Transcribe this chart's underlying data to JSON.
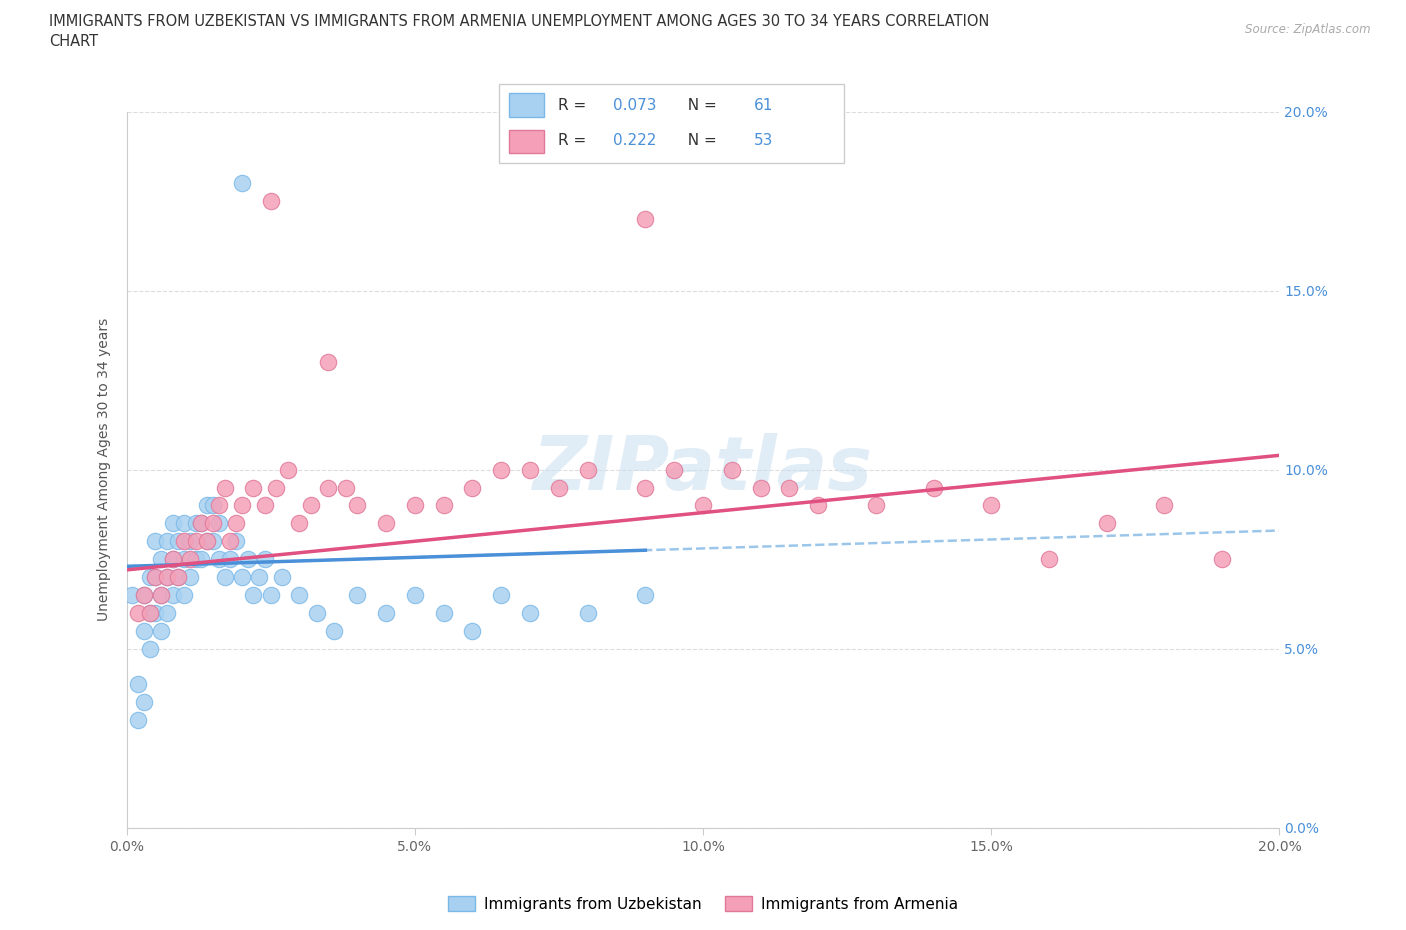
{
  "title_line1": "IMMIGRANTS FROM UZBEKISTAN VS IMMIGRANTS FROM ARMENIA UNEMPLOYMENT AMONG AGES 30 TO 34 YEARS CORRELATION",
  "title_line2": "CHART",
  "source_text": "Source: ZipAtlas.com",
  "ylabel": "Unemployment Among Ages 30 to 34 years",
  "xlim": [
    0.0,
    0.2
  ],
  "ylim": [
    0.0,
    0.2
  ],
  "yticks": [
    0.0,
    0.05,
    0.1,
    0.15,
    0.2
  ],
  "xticks": [
    0.0,
    0.05,
    0.1,
    0.15,
    0.2
  ],
  "R_uzbek": 0.073,
  "N_uzbek": 61,
  "R_armenia": 0.222,
  "N_armenia": 53,
  "color_uzbek": "#a8d0f0",
  "color_uzbek_edge": "#7ab8e8",
  "color_armenia": "#f5a0b8",
  "color_armenia_edge": "#e07898",
  "trendline_uzbek_solid": "#4a90d9",
  "trendline_uzbek_dash": "#90c0e8",
  "trendline_armenia_solid": "#e05080",
  "watermark_color": "#c8ddf0",
  "uzbek_x": [
    0.001,
    0.002,
    0.002,
    0.003,
    0.003,
    0.003,
    0.004,
    0.004,
    0.004,
    0.005,
    0.005,
    0.005,
    0.006,
    0.006,
    0.006,
    0.007,
    0.007,
    0.007,
    0.008,
    0.008,
    0.008,
    0.009,
    0.009,
    0.01,
    0.01,
    0.01,
    0.011,
    0.011,
    0.012,
    0.012,
    0.013,
    0.013,
    0.014,
    0.014,
    0.015,
    0.015,
    0.016,
    0.016,
    0.017,
    0.018,
    0.019,
    0.02,
    0.021,
    0.022,
    0.023,
    0.024,
    0.025,
    0.027,
    0.03,
    0.033,
    0.036,
    0.04,
    0.045,
    0.05,
    0.055,
    0.06,
    0.065,
    0.07,
    0.08,
    0.09,
    0.02
  ],
  "uzbek_y": [
    0.065,
    0.03,
    0.04,
    0.035,
    0.055,
    0.065,
    0.05,
    0.06,
    0.07,
    0.06,
    0.07,
    0.08,
    0.055,
    0.065,
    0.075,
    0.06,
    0.07,
    0.08,
    0.065,
    0.075,
    0.085,
    0.07,
    0.08,
    0.065,
    0.075,
    0.085,
    0.07,
    0.08,
    0.075,
    0.085,
    0.075,
    0.085,
    0.08,
    0.09,
    0.08,
    0.09,
    0.075,
    0.085,
    0.07,
    0.075,
    0.08,
    0.07,
    0.075,
    0.065,
    0.07,
    0.075,
    0.065,
    0.07,
    0.065,
    0.06,
    0.055,
    0.065,
    0.06,
    0.065,
    0.06,
    0.055,
    0.065,
    0.06,
    0.06,
    0.065,
    0.18
  ],
  "armenia_x": [
    0.002,
    0.003,
    0.004,
    0.005,
    0.006,
    0.007,
    0.008,
    0.009,
    0.01,
    0.011,
    0.012,
    0.013,
    0.014,
    0.015,
    0.016,
    0.017,
    0.018,
    0.019,
    0.02,
    0.022,
    0.024,
    0.026,
    0.028,
    0.03,
    0.032,
    0.035,
    0.038,
    0.04,
    0.045,
    0.05,
    0.055,
    0.06,
    0.065,
    0.07,
    0.075,
    0.08,
    0.09,
    0.1,
    0.11,
    0.12,
    0.13,
    0.14,
    0.15,
    0.16,
    0.17,
    0.18,
    0.19,
    0.095,
    0.105,
    0.115,
    0.025,
    0.035,
    0.09
  ],
  "armenia_y": [
    0.06,
    0.065,
    0.06,
    0.07,
    0.065,
    0.07,
    0.075,
    0.07,
    0.08,
    0.075,
    0.08,
    0.085,
    0.08,
    0.085,
    0.09,
    0.095,
    0.08,
    0.085,
    0.09,
    0.095,
    0.09,
    0.095,
    0.1,
    0.085,
    0.09,
    0.095,
    0.095,
    0.09,
    0.085,
    0.09,
    0.09,
    0.095,
    0.1,
    0.1,
    0.095,
    0.1,
    0.095,
    0.09,
    0.095,
    0.09,
    0.09,
    0.095,
    0.09,
    0.075,
    0.085,
    0.09,
    0.075,
    0.1,
    0.1,
    0.095,
    0.175,
    0.13,
    0.17
  ]
}
